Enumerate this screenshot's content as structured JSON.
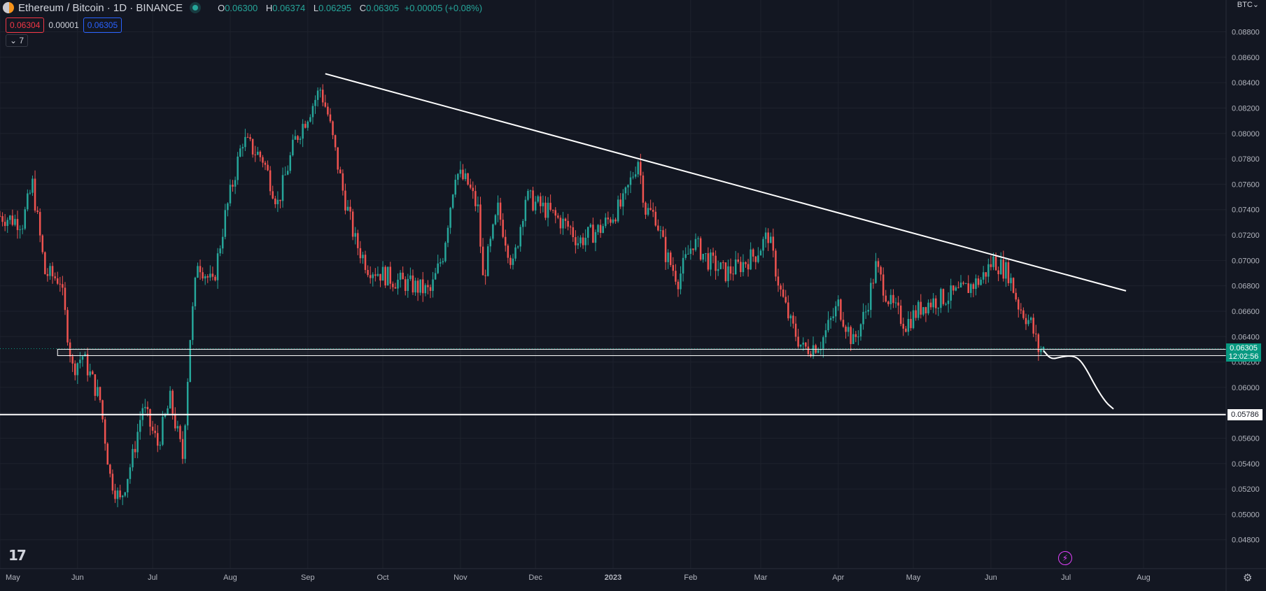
{
  "header": {
    "title": "Ethereum / Bitcoin · 1D · BINANCE",
    "ohlc": [
      {
        "k": "O",
        "v": "0.06300"
      },
      {
        "k": "H",
        "v": "0.06374"
      },
      {
        "k": "L",
        "v": "0.06295"
      },
      {
        "k": "C",
        "v": "0.06305"
      },
      {
        "k": "",
        "v": "+0.00005 (+0.08%)"
      }
    ],
    "sell_price": "0.06304",
    "spread": "0.00001",
    "buy_price": "0.06305",
    "indicators_toggle": "7",
    "currency": "BTC"
  },
  "colors": {
    "up": "#26a69a",
    "down": "#ef5350",
    "background": "#131722",
    "accent_sell": "#f23645",
    "accent_buy": "#2962ff"
  },
  "price_axis": {
    "ticks": [
      "0.08800",
      "0.08600",
      "0.08400",
      "0.08200",
      "0.08000",
      "0.07800",
      "0.07600",
      "0.07400",
      "0.07200",
      "0.07000",
      "0.06800",
      "0.06600",
      "0.06400",
      "0.06200",
      "0.06000",
      "0.05800",
      "0.05600",
      "0.05400",
      "0.05200",
      "0.05000",
      "0.04800"
    ],
    "last_price": "0.06305",
    "countdown": "12:02:56",
    "horizontal_level": "0.05786"
  },
  "time_axis": {
    "labels": [
      "May",
      "Jun",
      "Jul",
      "Aug",
      "Sep",
      "Oct",
      "Nov",
      "Dec",
      "2023",
      "Feb",
      "Mar",
      "Apr",
      "May",
      "Jun",
      "Jul",
      "Aug"
    ]
  },
  "chart_data": {
    "type": "candlestick",
    "symbol": "ETHBTC",
    "interval": "1D",
    "y_range": [
      0.0476,
      0.0888
    ],
    "x_range": [
      "2022-05-01",
      "2023-08-31"
    ],
    "anchors": [
      {
        "date": "2022-05-01",
        "close": 0.0735
      },
      {
        "date": "2022-05-10",
        "close": 0.073
      },
      {
        "date": "2022-05-14",
        "close": 0.076
      },
      {
        "date": "2022-05-19",
        "close": 0.069
      },
      {
        "date": "2022-05-25",
        "close": 0.0685
      },
      {
        "date": "2022-05-30",
        "close": 0.0615
      },
      {
        "date": "2022-06-03",
        "close": 0.0625
      },
      {
        "date": "2022-06-10",
        "close": 0.059
      },
      {
        "date": "2022-06-14",
        "close": 0.053
      },
      {
        "date": "2022-06-18",
        "close": 0.051
      },
      {
        "date": "2022-06-23",
        "close": 0.0545
      },
      {
        "date": "2022-06-27",
        "close": 0.0585
      },
      {
        "date": "2022-07-03",
        "close": 0.0555
      },
      {
        "date": "2022-07-08",
        "close": 0.059
      },
      {
        "date": "2022-07-13",
        "close": 0.0545
      },
      {
        "date": "2022-07-16",
        "close": 0.064
      },
      {
        "date": "2022-07-19",
        "close": 0.07
      },
      {
        "date": "2022-07-25",
        "close": 0.068
      },
      {
        "date": "2022-07-30",
        "close": 0.0735
      },
      {
        "date": "2022-08-06",
        "close": 0.0795
      },
      {
        "date": "2022-08-14",
        "close": 0.078
      },
      {
        "date": "2022-08-20",
        "close": 0.0745
      },
      {
        "date": "2022-08-27",
        "close": 0.0795
      },
      {
        "date": "2022-09-06",
        "close": 0.0835
      },
      {
        "date": "2022-09-09",
        "close": 0.0815
      },
      {
        "date": "2022-09-15",
        "close": 0.0755
      },
      {
        "date": "2022-09-20",
        "close": 0.0715
      },
      {
        "date": "2022-09-25",
        "close": 0.0695
      },
      {
        "date": "2022-10-05",
        "close": 0.0685
      },
      {
        "date": "2022-10-13",
        "close": 0.068
      },
      {
        "date": "2022-10-20",
        "close": 0.0675
      },
      {
        "date": "2022-10-25",
        "close": 0.0705
      },
      {
        "date": "2022-10-30",
        "close": 0.077
      },
      {
        "date": "2022-11-04",
        "close": 0.076
      },
      {
        "date": "2022-11-08",
        "close": 0.074
      },
      {
        "date": "2022-11-10",
        "close": 0.0685
      },
      {
        "date": "2022-11-16",
        "close": 0.074
      },
      {
        "date": "2022-11-22",
        "close": 0.0695
      },
      {
        "date": "2022-11-27",
        "close": 0.075
      },
      {
        "date": "2022-12-05",
        "close": 0.074
      },
      {
        "date": "2022-12-15",
        "close": 0.0725
      },
      {
        "date": "2022-12-18",
        "close": 0.0715
      },
      {
        "date": "2022-12-27",
        "close": 0.0725
      },
      {
        "date": "2023-01-05",
        "close": 0.0745
      },
      {
        "date": "2023-01-11",
        "close": 0.078
      },
      {
        "date": "2023-01-14",
        "close": 0.074
      },
      {
        "date": "2023-01-18",
        "close": 0.0735
      },
      {
        "date": "2023-01-22",
        "close": 0.0705
      },
      {
        "date": "2023-01-27",
        "close": 0.0685
      },
      {
        "date": "2023-02-02",
        "close": 0.0715
      },
      {
        "date": "2023-02-08",
        "close": 0.07
      },
      {
        "date": "2023-02-15",
        "close": 0.069
      },
      {
        "date": "2023-02-20",
        "close": 0.0695
      },
      {
        "date": "2023-02-27",
        "close": 0.0705
      },
      {
        "date": "2023-03-04",
        "close": 0.072
      },
      {
        "date": "2023-03-09",
        "close": 0.0675
      },
      {
        "date": "2023-03-13",
        "close": 0.065
      },
      {
        "date": "2023-03-18",
        "close": 0.063
      },
      {
        "date": "2023-03-25",
        "close": 0.0635
      },
      {
        "date": "2023-04-01",
        "close": 0.0665
      },
      {
        "date": "2023-04-07",
        "close": 0.0635
      },
      {
        "date": "2023-04-12",
        "close": 0.066
      },
      {
        "date": "2023-04-16",
        "close": 0.0695
      },
      {
        "date": "2023-04-22",
        "close": 0.0665
      },
      {
        "date": "2023-04-28",
        "close": 0.065
      },
      {
        "date": "2023-05-05",
        "close": 0.0665
      },
      {
        "date": "2023-05-12",
        "close": 0.067
      },
      {
        "date": "2023-05-20",
        "close": 0.0675
      },
      {
        "date": "2023-05-28",
        "close": 0.0685
      },
      {
        "date": "2023-06-02",
        "close": 0.07
      },
      {
        "date": "2023-06-08",
        "close": 0.069
      },
      {
        "date": "2023-06-12",
        "close": 0.0665
      },
      {
        "date": "2023-06-17",
        "close": 0.065
      },
      {
        "date": "2023-06-20",
        "close": 0.063
      },
      {
        "date": "2023-06-22",
        "close": 0.063
      }
    ],
    "drawings": {
      "trendline": [
        {
          "date": "2022-09-08",
          "price": 0.0847
        },
        {
          "date": "2023-07-25",
          "price": 0.0676
        }
      ],
      "support_zone": {
        "from": "2022-05-24",
        "to": "2023-08-31",
        "top": 0.063,
        "bottom": 0.0625
      },
      "horizontal_line": {
        "price": 0.05786
      },
      "projection": [
        {
          "date": "2023-06-22",
          "price": 0.0629
        },
        {
          "date": "2023-06-25",
          "price": 0.0622
        },
        {
          "date": "2023-06-29",
          "price": 0.0624
        },
        {
          "date": "2023-07-03",
          "price": 0.0625
        },
        {
          "date": "2023-07-06",
          "price": 0.0623
        },
        {
          "date": "2023-07-09",
          "price": 0.0615
        },
        {
          "date": "2023-07-13",
          "price": 0.06
        },
        {
          "date": "2023-07-17",
          "price": 0.0588
        },
        {
          "date": "2023-07-20",
          "price": 0.0583
        }
      ]
    }
  }
}
